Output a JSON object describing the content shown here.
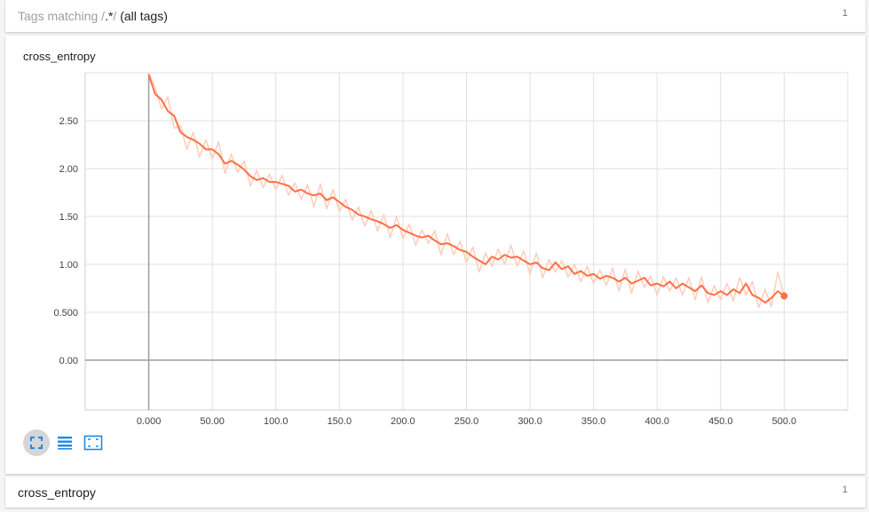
{
  "header": {
    "prefix": "Tags matching /",
    "pattern": ".*",
    "suffix": "/ ",
    "all_tags": "(all tags)",
    "count": "1"
  },
  "card": {
    "title": "cross_entropy"
  },
  "toolbar": {
    "buttons": [
      {
        "name": "expand-chart-icon",
        "active": true
      },
      {
        "name": "toggle-log-scale-icon",
        "active": false
      },
      {
        "name": "fit-domain-icon",
        "active": false
      }
    ]
  },
  "footer": {
    "title": "cross_entropy",
    "count": "1"
  },
  "colors": {
    "line": "#ff7043",
    "raw_line": "#ffccbc",
    "grid": "#e0e0e0",
    "axis": "#9e9e9e",
    "tick_text": "#424242",
    "tool_icon": "#1e88e5"
  },
  "chart_data": {
    "type": "line",
    "title": "",
    "xlabel": "",
    "ylabel": "",
    "xlim": [
      -50,
      550
    ],
    "ylim": [
      -0.52,
      3.0
    ],
    "x_ticks": [
      0,
      50,
      100,
      150,
      200,
      250,
      300,
      350,
      400,
      450,
      500
    ],
    "x_tick_labels": [
      "0.000",
      "50.00",
      "100.0",
      "150.0",
      "200.0",
      "250.0",
      "300.0",
      "350.0",
      "400.0",
      "450.0",
      "500.0"
    ],
    "y_ticks": [
      0,
      0.5,
      1.0,
      1.5,
      2.0,
      2.5
    ],
    "y_tick_labels": [
      "0.00",
      "0.500",
      "1.00",
      "1.50",
      "2.00",
      "2.50"
    ],
    "grid": true,
    "series": [
      {
        "x": [
          0,
          5,
          10,
          15,
          20,
          25,
          30,
          35,
          40,
          45,
          50,
          55,
          60,
          65,
          70,
          75,
          80,
          85,
          90,
          95,
          100,
          105,
          110,
          115,
          120,
          125,
          130,
          135,
          140,
          145,
          150,
          155,
          160,
          165,
          170,
          175,
          180,
          185,
          190,
          195,
          200,
          205,
          210,
          215,
          220,
          225,
          230,
          235,
          240,
          245,
          250,
          255,
          260,
          265,
          270,
          275,
          280,
          285,
          290,
          295,
          300,
          305,
          310,
          315,
          320,
          325,
          330,
          335,
          340,
          345,
          350,
          355,
          360,
          365,
          370,
          375,
          380,
          385,
          390,
          395,
          400,
          405,
          410,
          415,
          420,
          425,
          430,
          435,
          440,
          445,
          450,
          455,
          460,
          465,
          470,
          475,
          480,
          485,
          490,
          495,
          500
        ],
        "smoothed": [
          2.98,
          2.78,
          2.72,
          2.6,
          2.55,
          2.38,
          2.33,
          2.3,
          2.26,
          2.2,
          2.2,
          2.15,
          2.05,
          2.08,
          2.04,
          1.99,
          1.92,
          1.88,
          1.9,
          1.86,
          1.86,
          1.84,
          1.82,
          1.76,
          1.78,
          1.74,
          1.72,
          1.74,
          1.67,
          1.7,
          1.65,
          1.6,
          1.57,
          1.52,
          1.5,
          1.47,
          1.45,
          1.42,
          1.38,
          1.41,
          1.36,
          1.33,
          1.3,
          1.28,
          1.3,
          1.25,
          1.21,
          1.22,
          1.19,
          1.15,
          1.13,
          1.08,
          1.04,
          1.0,
          1.08,
          1.05,
          1.1,
          1.07,
          1.08,
          1.04,
          1.0,
          1.02,
          0.96,
          0.94,
          1.02,
          0.95,
          0.98,
          0.9,
          0.93,
          0.88,
          0.9,
          0.85,
          0.88,
          0.86,
          0.82,
          0.86,
          0.8,
          0.83,
          0.86,
          0.78,
          0.8,
          0.77,
          0.82,
          0.75,
          0.8,
          0.76,
          0.72,
          0.78,
          0.7,
          0.68,
          0.72,
          0.68,
          0.74,
          0.7,
          0.8,
          0.68,
          0.65,
          0.6,
          0.65,
          0.72,
          0.67
        ],
        "raw": [
          3.0,
          2.85,
          2.62,
          2.75,
          2.42,
          2.45,
          2.2,
          2.38,
          2.12,
          2.3,
          2.1,
          2.28,
          1.95,
          2.15,
          1.96,
          2.08,
          1.82,
          1.98,
          1.8,
          1.94,
          1.78,
          1.93,
          1.72,
          1.85,
          1.68,
          1.83,
          1.6,
          1.84,
          1.58,
          1.78,
          1.55,
          1.68,
          1.46,
          1.6,
          1.4,
          1.56,
          1.35,
          1.52,
          1.28,
          1.5,
          1.27,
          1.42,
          1.2,
          1.36,
          1.22,
          1.35,
          1.1,
          1.32,
          1.1,
          1.24,
          1.02,
          1.18,
          0.92,
          1.12,
          0.98,
          1.16,
          1.0,
          1.2,
          0.98,
          1.14,
          0.9,
          1.12,
          0.86,
          1.05,
          0.92,
          1.04,
          0.87,
          1.0,
          0.82,
          0.98,
          0.8,
          0.94,
          0.78,
          0.96,
          0.72,
          0.95,
          0.7,
          0.93,
          0.76,
          0.88,
          0.68,
          0.87,
          0.72,
          0.86,
          0.68,
          0.86,
          0.63,
          0.87,
          0.6,
          0.78,
          0.63,
          0.8,
          0.62,
          0.86,
          0.68,
          0.82,
          0.55,
          0.74,
          0.56,
          0.92,
          0.67
        ]
      }
    ]
  }
}
